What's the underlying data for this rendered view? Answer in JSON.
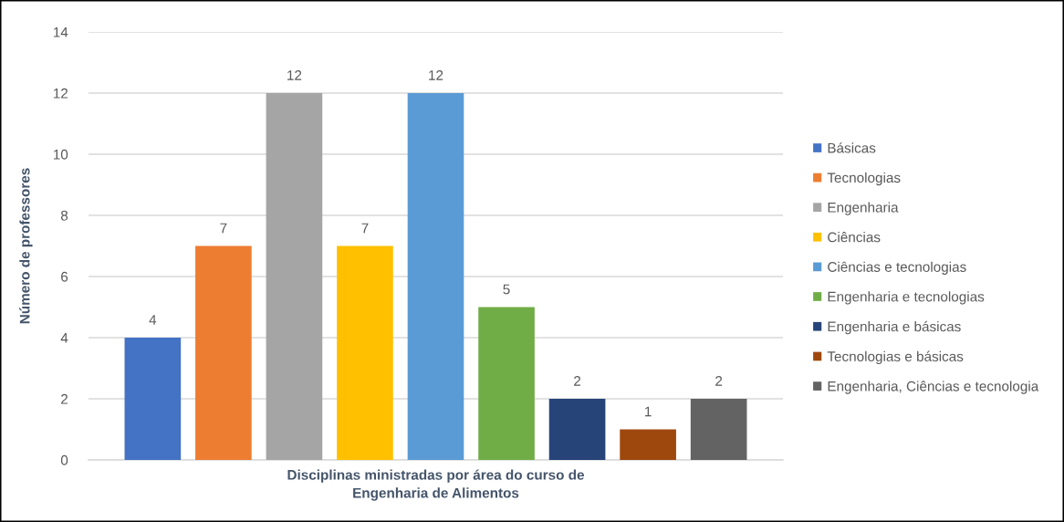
{
  "chart_data": {
    "type": "bar",
    "xlabel": "Disciplinas ministradas por área do curso de\nEngenharia de Alimentos",
    "ylabel": "Número de professores",
    "categories": [
      null
    ],
    "series": [
      {
        "name": "Básicas",
        "color": "#4472c4",
        "values": [
          4
        ]
      },
      {
        "name": "Tecnologias",
        "color": "#ed7d31",
        "values": [
          7
        ]
      },
      {
        "name": "Engenharia",
        "color": "#a5a5a5",
        "values": [
          12
        ]
      },
      {
        "name": "Ciências",
        "color": "#ffc000",
        "values": [
          7
        ]
      },
      {
        "name": "Ciências e tecnologias",
        "color": "#5b9bd5",
        "values": [
          12
        ]
      },
      {
        "name": "Engenharia e tecnologias",
        "color": "#70ad47",
        "values": [
          5
        ]
      },
      {
        "name": "Engenharia e básicas",
        "color": "#264478",
        "values": [
          2
        ]
      },
      {
        "name": "Tecnologias e básicas",
        "color": "#9e480e",
        "values": [
          1
        ]
      },
      {
        "name": "Engenharia, Ciências e tecnologia",
        "color": "#636363",
        "values": [
          2
        ]
      }
    ],
    "ylim": [
      0,
      14
    ],
    "yticks": [
      0,
      2,
      4,
      6,
      8,
      10,
      12,
      14
    ],
    "grid": "y",
    "legend": "right",
    "data_labels": true
  }
}
